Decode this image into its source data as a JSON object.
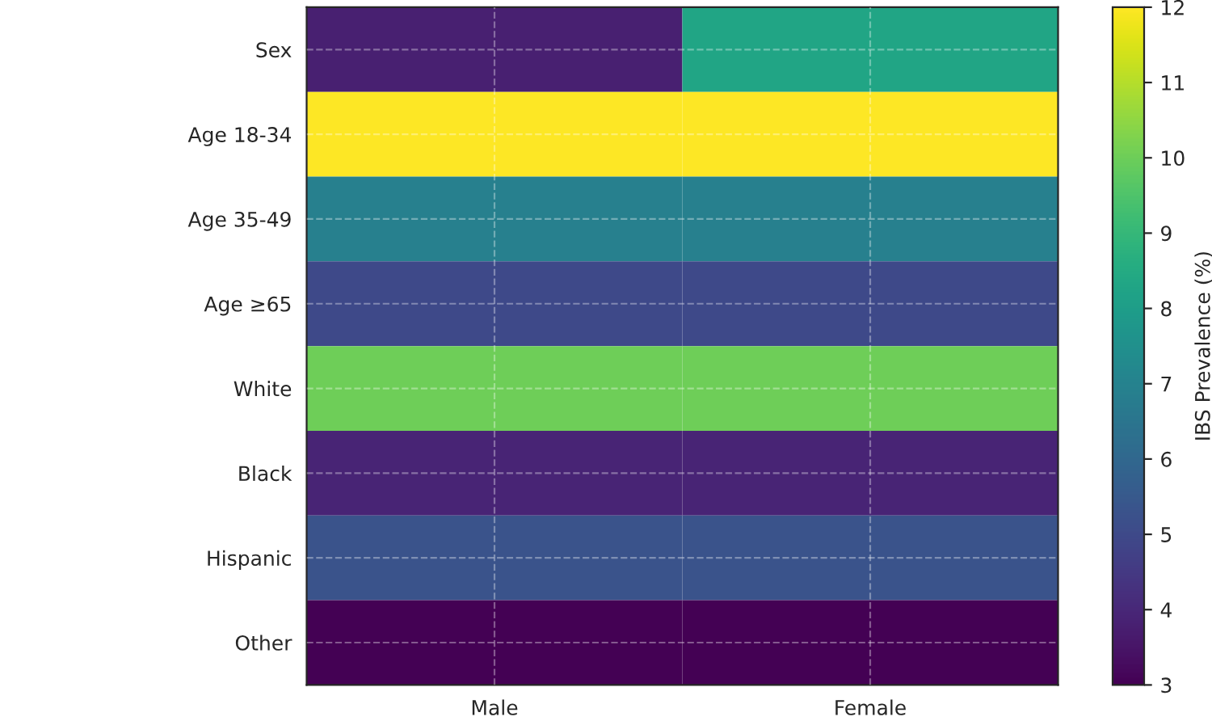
{
  "chart_data": {
    "type": "heatmap",
    "categories": [
      "Male",
      "Female"
    ],
    "y_categories": [
      "Sex",
      "Age 18-34",
      "Age 35-49",
      "Age ≥65",
      "White",
      "Black",
      "Hispanic",
      "Other"
    ],
    "cells": [
      [
        3.8,
        8.3
      ],
      [
        12,
        12
      ],
      [
        6.9,
        6.9
      ],
      [
        5.0,
        5.0
      ],
      [
        10.0,
        10.0
      ],
      [
        3.9,
        3.9
      ],
      [
        5.3,
        5.3
      ],
      [
        3.0,
        3.0
      ]
    ],
    "clim": [
      3,
      12
    ],
    "cticks": [
      3,
      4,
      5,
      6,
      7,
      8,
      9,
      10,
      11,
      12
    ],
    "clabel": "IBS Prevalence (%)",
    "grid": true
  }
}
